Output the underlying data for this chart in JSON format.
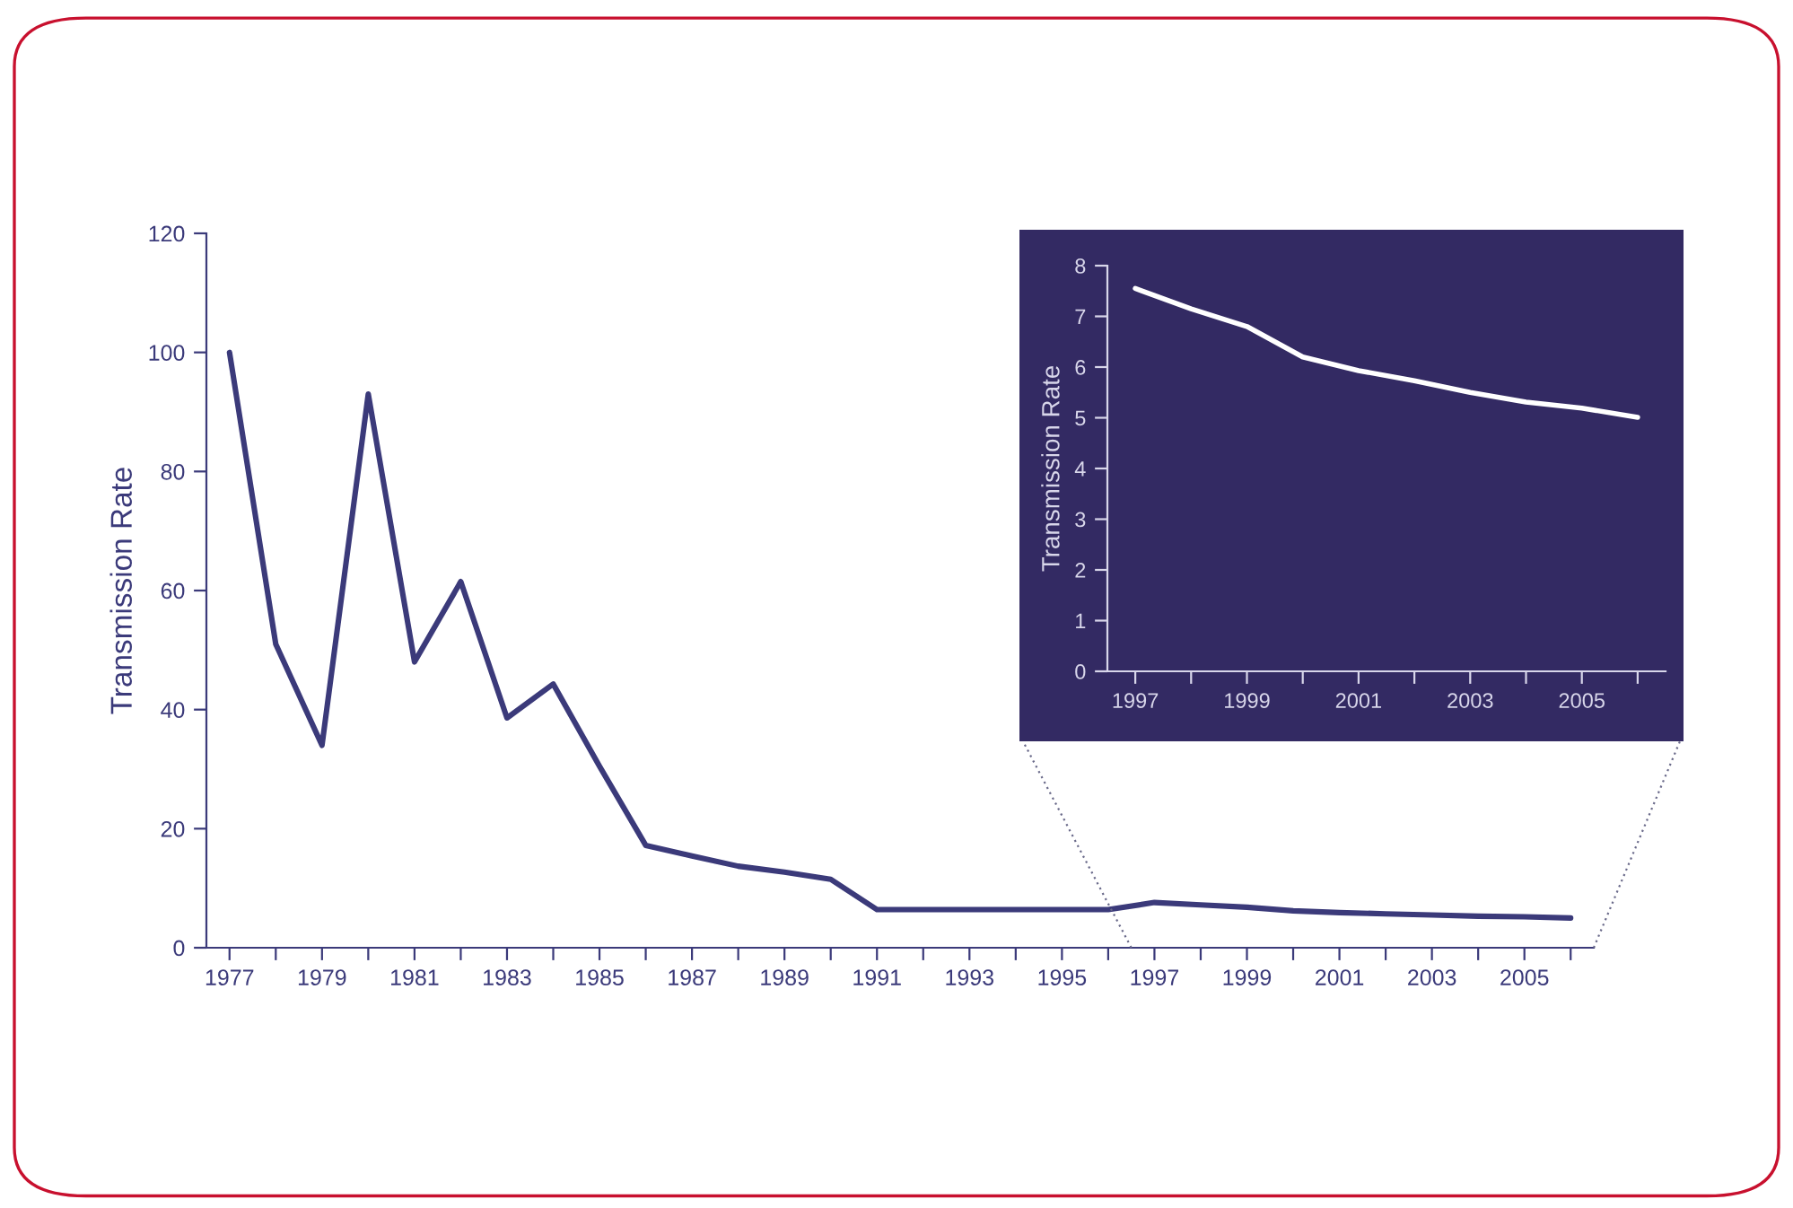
{
  "chart_data": [
    {
      "type": "line",
      "ylabel": "Transmission Rate",
      "color": "#3b3a7a",
      "x": [
        1977,
        1978,
        1979,
        1980,
        1981,
        1982,
        1983,
        1984,
        1985,
        1986,
        1987,
        1988,
        1989,
        1990,
        1991,
        1992,
        1993,
        1994,
        1995,
        1996,
        1997,
        1998,
        1999,
        2000,
        2001,
        2002,
        2003,
        2004,
        2005,
        2006
      ],
      "values": [
        100,
        51,
        34,
        93,
        48,
        61.5,
        38.6,
        44.3,
        30.5,
        17.2,
        15.4,
        13.7,
        12.7,
        11.5,
        6.4,
        6.4,
        6.4,
        6.4,
        6.4,
        6.4,
        7.6,
        7.2,
        6.8,
        6.2,
        5.9,
        5.7,
        5.5,
        5.3,
        5.2,
        5.0
      ],
      "xlim": [
        1976.5,
        2006.5
      ],
      "xticks": [
        {
          "value": 1977,
          "label": "1977"
        },
        {
          "value": 1978,
          "label": null
        },
        {
          "value": 1979,
          "label": "1979"
        },
        {
          "value": 1980,
          "label": null
        },
        {
          "value": 1981,
          "label": "1981"
        },
        {
          "value": 1982,
          "label": null
        },
        {
          "value": 1983,
          "label": "1983"
        },
        {
          "value": 1984,
          "label": null
        },
        {
          "value": 1985,
          "label": "1985"
        },
        {
          "value": 1986,
          "label": null
        },
        {
          "value": 1987,
          "label": "1987"
        },
        {
          "value": 1988,
          "label": null
        },
        {
          "value": 1989,
          "label": "1989"
        },
        {
          "value": 1990,
          "label": null
        },
        {
          "value": 1991,
          "label": "1991"
        },
        {
          "value": 1992,
          "label": null
        },
        {
          "value": 1993,
          "label": "1993"
        },
        {
          "value": 1994,
          "label": null
        },
        {
          "value": 1995,
          "label": "1995"
        },
        {
          "value": 1996,
          "label": null
        },
        {
          "value": 1997,
          "label": "1997"
        },
        {
          "value": 1998,
          "label": null
        },
        {
          "value": 1999,
          "label": "1999"
        },
        {
          "value": 2000,
          "label": null
        },
        {
          "value": 2001,
          "label": "2001"
        },
        {
          "value": 2002,
          "label": null
        },
        {
          "value": 2003,
          "label": "2003"
        },
        {
          "value": 2004,
          "label": null
        },
        {
          "value": 2005,
          "label": "2005"
        },
        {
          "value": 2006,
          "label": null
        }
      ],
      "ylim": [
        0,
        120
      ],
      "yticks": [
        0,
        20,
        40,
        60,
        80,
        100,
        120
      ],
      "grid": false
    },
    {
      "type": "line",
      "ylabel": "Transmission Rate",
      "color": "#ffffff",
      "x": [
        1997,
        1998,
        1999,
        2000,
        2001,
        2002,
        2003,
        2004,
        2005,
        2006
      ],
      "values": [
        7.55,
        7.15,
        6.8,
        6.2,
        5.93,
        5.73,
        5.5,
        5.31,
        5.19,
        5.01
      ],
      "xlim": [
        1996.5,
        2006.5
      ],
      "xticks": [
        {
          "value": 1997,
          "label": "1997"
        },
        {
          "value": 1998,
          "label": null
        },
        {
          "value": 1999,
          "label": "1999"
        },
        {
          "value": 2000,
          "label": null
        },
        {
          "value": 2001,
          "label": "2001"
        },
        {
          "value": 2002,
          "label": null
        },
        {
          "value": 2003,
          "label": "2003"
        },
        {
          "value": 2004,
          "label": null
        },
        {
          "value": 2005,
          "label": "2005"
        },
        {
          "value": 2006,
          "label": null
        }
      ],
      "ylim": [
        0,
        8
      ],
      "yticks": [
        0,
        1,
        2,
        3,
        4,
        5,
        6,
        7,
        8
      ],
      "grid": false
    }
  ]
}
